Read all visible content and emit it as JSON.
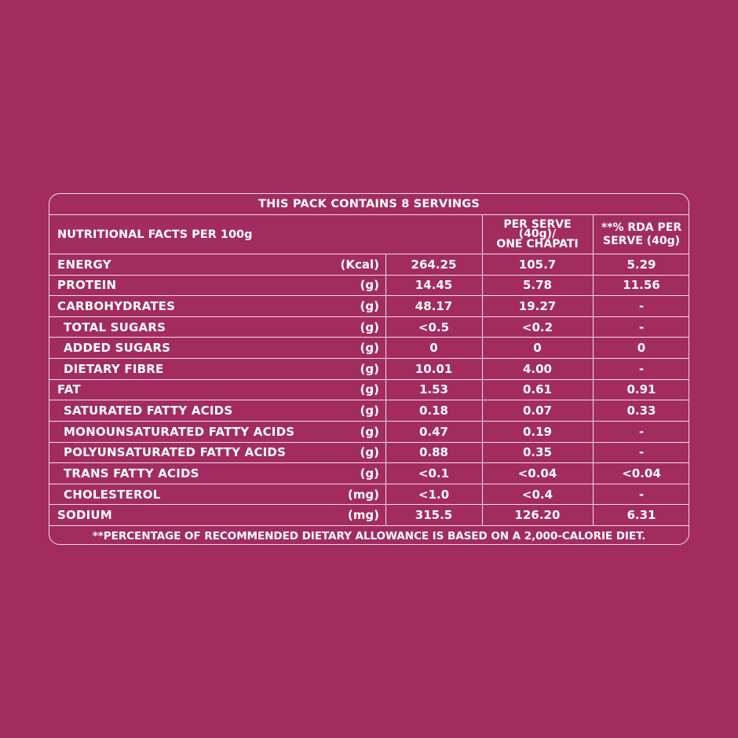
{
  "table": {
    "title": "THIS PACK CONTAINS 8 SERVINGS",
    "header": {
      "label": "NUTRITIONAL FACTS PER 100g",
      "col_per_serve": "PER SERVE (40g)/ ONE CHAPATI",
      "col_per_serve_lines": [
        "PER SERVE",
        "(40g)/",
        "ONE CHAPATI"
      ],
      "col_rda": "**% RDA PER SERVE (40g)",
      "col_rda_lines": [
        "**% RDA PER",
        "SERVE (40g)"
      ]
    },
    "rows": [
      {
        "name": "ENERGY",
        "unit": "(Kcal)",
        "per100g": "264.25",
        "per_serve": "105.7",
        "rda": "5.29",
        "indent": false
      },
      {
        "name": "PROTEIN",
        "unit": "(g)",
        "per100g": "14.45",
        "per_serve": "5.78",
        "rda": "11.56",
        "indent": false
      },
      {
        "name": "CARBOHYDRATES",
        "unit": "(g)",
        "per100g": "48.17",
        "per_serve": "19.27",
        "rda": "-",
        "indent": false
      },
      {
        "name": "TOTAL SUGARS",
        "unit": "(g)",
        "per100g": "<0.5",
        "per_serve": "<0.2",
        "rda": "-",
        "indent": true
      },
      {
        "name": "ADDED SUGARS",
        "unit": "(g)",
        "per100g": "0",
        "per_serve": "0",
        "rda": "0",
        "indent": true
      },
      {
        "name": "DIETARY FIBRE",
        "unit": "(g)",
        "per100g": "10.01",
        "per_serve": "4.00",
        "rda": "-",
        "indent": true
      },
      {
        "name": "FAT",
        "unit": "(g)",
        "per100g": "1.53",
        "per_serve": "0.61",
        "rda": "0.91",
        "indent": false
      },
      {
        "name": "SATURATED FATTY ACIDS",
        "unit": "(g)",
        "per100g": "0.18",
        "per_serve": "0.07",
        "rda": "0.33",
        "indent": true
      },
      {
        "name": "MONOUNSATURATED FATTY ACIDS",
        "unit": "(g)",
        "per100g": "0.47",
        "per_serve": "0.19",
        "rda": "-",
        "indent": true
      },
      {
        "name": "POLYUNSATURATED FATTY ACIDS",
        "unit": "(g)",
        "per100g": "0.88",
        "per_serve": "0.35",
        "rda": "-",
        "indent": true
      },
      {
        "name": "TRANS FATTY ACIDS",
        "unit": "(g)",
        "per100g": "<0.1",
        "per_serve": "<0.04",
        "rda": "<0.04",
        "indent": true
      },
      {
        "name": "CHOLESTEROL",
        "unit": "(mg)",
        "per100g": "<1.0",
        "per_serve": "<0.4",
        "rda": "-",
        "indent": true
      },
      {
        "name": "SODIUM",
        "unit": "(mg)",
        "per100g": "315.5",
        "per_serve": "126.20",
        "rda": "6.31",
        "indent": false
      }
    ],
    "footer": "**PERCENTAGE OF RECOMMENDED DIETARY ALLOWANCE IS BASED ON A 2,000-CALORIE DIET."
  },
  "colors": {
    "background": "#a22c5f",
    "text": "#ffffff",
    "rule": "#f3dbe5"
  }
}
